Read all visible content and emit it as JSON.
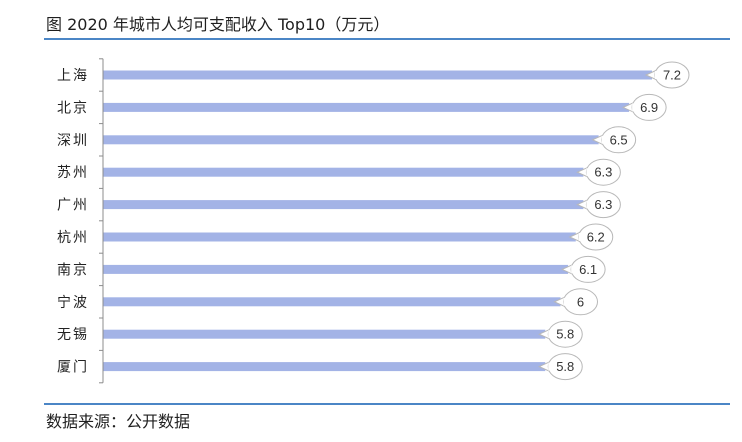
{
  "title": "图 2020 年城市人均可支配收入 Top10（万元）",
  "source": "数据来源：公开数据",
  "colors": {
    "bar": "#a3b3e6",
    "rule": "#4b86c6",
    "axis": "#8c8c8c",
    "callout_border": "#b8b8b8"
  },
  "chart_data": {
    "type": "bar",
    "orientation": "horizontal",
    "title": "图 2020 年城市人均可支配收入 Top10（万元）",
    "unit": "万元",
    "categories": [
      "上海",
      "北京",
      "深圳",
      "苏州",
      "广州",
      "杭州",
      "南京",
      "宁波",
      "无锡",
      "厦门"
    ],
    "values": [
      7.2,
      6.9,
      6.5,
      6.3,
      6.3,
      6.2,
      6.1,
      6,
      5.8,
      5.8
    ],
    "value_labels": [
      "7.2",
      "6.9",
      "6.5",
      "6.3",
      "6.3",
      "6.2",
      "6.1",
      "6",
      "5.8",
      "5.8"
    ],
    "xlim": [
      0,
      7.2
    ],
    "grid": false,
    "legend": "none",
    "data_labels": "callout"
  }
}
